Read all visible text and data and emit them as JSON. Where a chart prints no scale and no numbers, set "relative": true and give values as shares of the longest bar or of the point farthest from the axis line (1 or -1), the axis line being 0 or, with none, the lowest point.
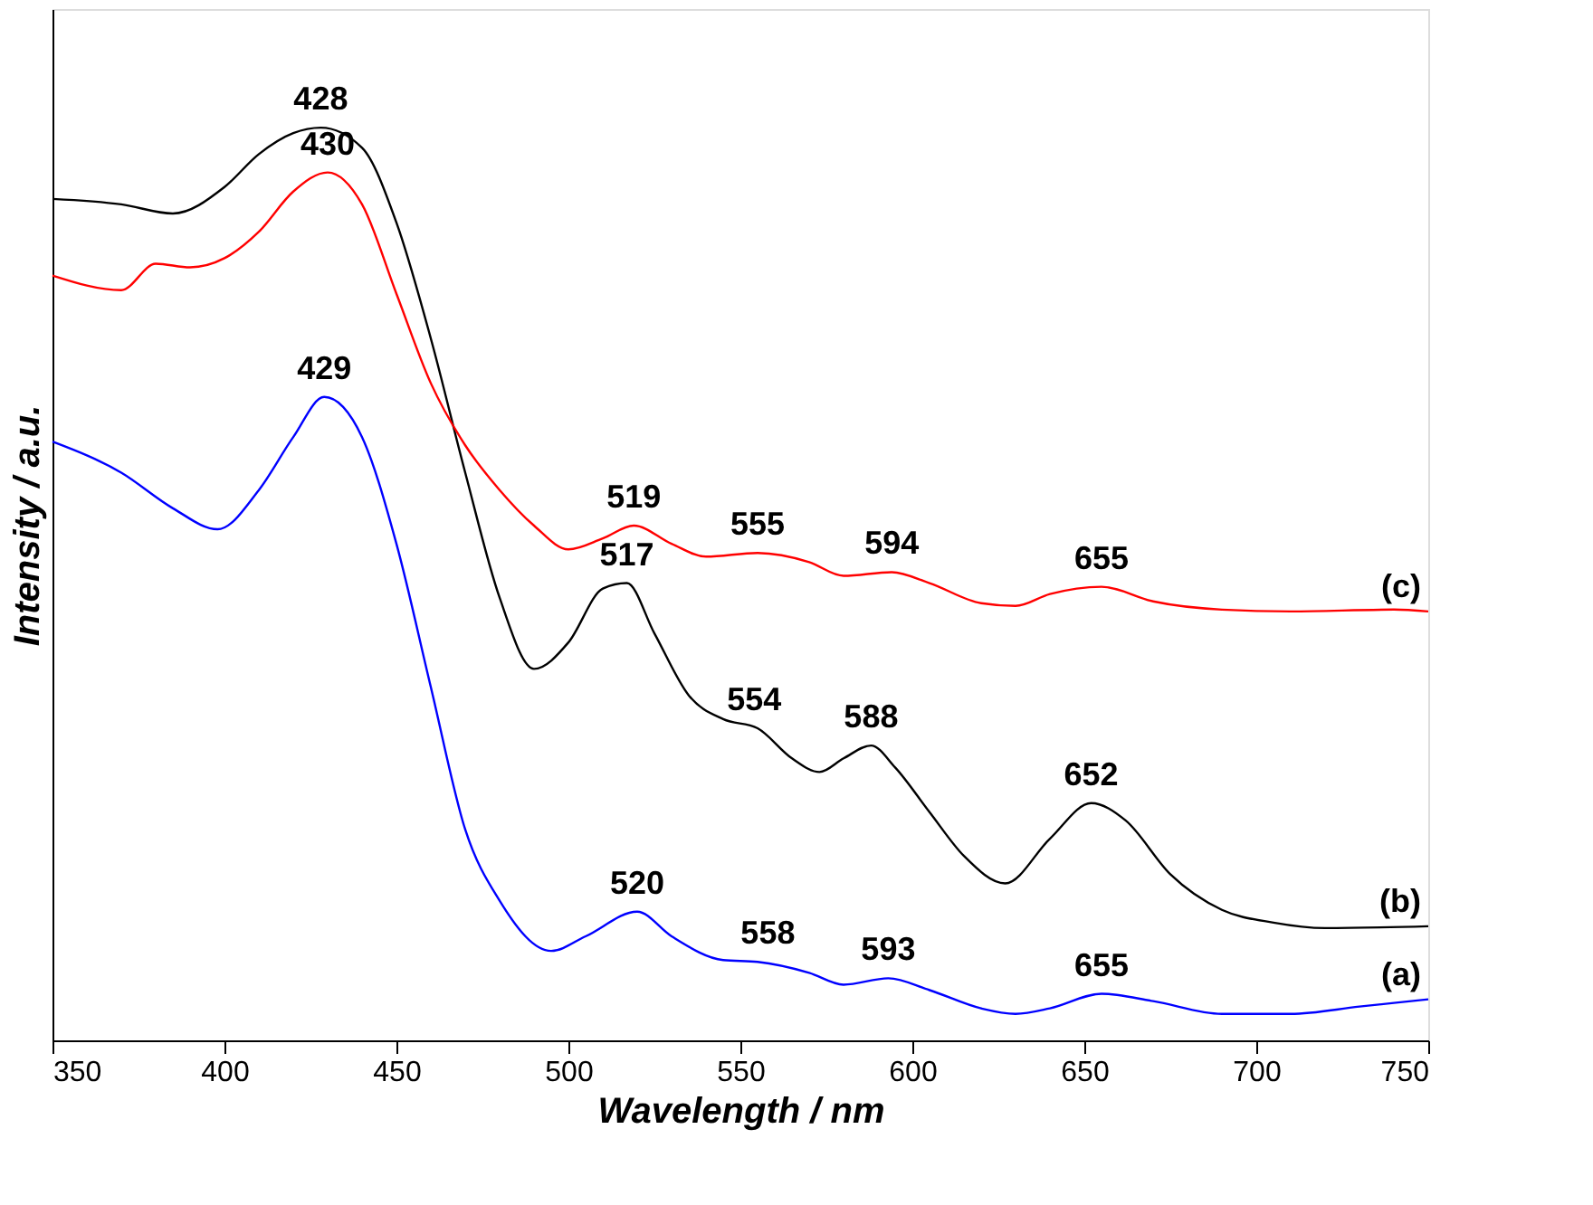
{
  "chart_data": {
    "type": "line",
    "relative": true,
    "xlabel": "Wavelength / nm",
    "ylabel": "Intensity / a.u.",
    "xlim": [
      350,
      750
    ],
    "xticks": [
      350,
      400,
      450,
      500,
      550,
      600,
      650,
      700,
      750
    ],
    "grid": false,
    "marker": "none",
    "line_style": "solid",
    "series": [
      {
        "name": "(a)",
        "color": "#0000ff",
        "x": [
          350,
          370,
          385,
          398,
          410,
          420,
          429,
          440,
          450,
          460,
          470,
          480,
          495,
          505,
          520,
          530,
          545,
          555,
          570,
          580,
          593,
          605,
          620,
          630,
          640,
          655,
          670,
          690,
          710,
          730,
          750
        ],
        "values": [
          0.656,
          0.622,
          0.583,
          0.56,
          0.603,
          0.661,
          0.705,
          0.661,
          0.544,
          0.387,
          0.231,
          0.153,
          0.098,
          0.114,
          0.141,
          0.114,
          0.088,
          0.086,
          0.074,
          0.061,
          0.068,
          0.055,
          0.035,
          0.029,
          0.035,
          0.051,
          0.043,
          0.029,
          0.029,
          0.037,
          0.045
        ]
      },
      {
        "name": "(b)",
        "color": "#000000",
        "x": [
          350,
          370,
          385,
          400,
          410,
          420,
          428,
          440,
          450,
          460,
          470,
          480,
          490,
          500,
          510,
          517,
          525,
          535,
          545,
          555,
          565,
          573,
          580,
          588,
          595,
          605,
          615,
          627,
          640,
          652,
          662,
          675,
          690,
          705,
          720,
          750
        ],
        "values": [
          0.922,
          0.916,
          0.906,
          0.935,
          0.971,
          0.994,
          1,
          0.978,
          0.896,
          0.769,
          0.622,
          0.485,
          0.407,
          0.436,
          0.495,
          0.501,
          0.446,
          0.378,
          0.352,
          0.342,
          0.309,
          0.294,
          0.309,
          0.323,
          0.299,
          0.25,
          0.202,
          0.172,
          0.221,
          0.26,
          0.241,
          0.182,
          0.143,
          0.129,
          0.123,
          0.125
        ]
      },
      {
        "name": "(c)",
        "color": "#ff0000",
        "x": [
          350,
          370,
          380,
          390,
          400,
          410,
          420,
          430,
          440,
          450,
          460,
          470,
          480,
          490,
          500,
          510,
          519,
          530,
          540,
          555,
          570,
          580,
          594,
          605,
          620,
          630,
          640,
          655,
          670,
          690,
          710,
          740,
          750
        ],
        "values": [
          0.838,
          0.822,
          0.851,
          0.847,
          0.857,
          0.886,
          0.93,
          0.951,
          0.916,
          0.818,
          0.72,
          0.652,
          0.603,
          0.564,
          0.538,
          0.55,
          0.564,
          0.544,
          0.53,
          0.534,
          0.524,
          0.509,
          0.513,
          0.501,
          0.479,
          0.476,
          0.489,
          0.497,
          0.481,
          0.472,
          0.47,
          0.472,
          0.47
        ]
      }
    ],
    "annotations": [
      {
        "text": "428",
        "x": 428,
        "y": 1
      },
      {
        "text": "517",
        "x": 517,
        "y": 0.501
      },
      {
        "text": "554",
        "x": 554,
        "y": 0.342
      },
      {
        "text": "588",
        "x": 588,
        "y": 0.323
      },
      {
        "text": "652",
        "x": 652,
        "y": 0.26
      },
      {
        "text": "430",
        "x": 430,
        "y": 0.951
      },
      {
        "text": "519",
        "x": 519,
        "y": 0.564
      },
      {
        "text": "555",
        "x": 555,
        "y": 0.534
      },
      {
        "text": "594",
        "x": 594,
        "y": 0.513
      },
      {
        "text": "655",
        "x": 655,
        "y": 0.497
      },
      {
        "text": "429",
        "x": 429,
        "y": 0.705
      },
      {
        "text": "520",
        "x": 520,
        "y": 0.141
      },
      {
        "text": "558",
        "x": 558,
        "y": 0.086
      },
      {
        "text": "593",
        "x": 593,
        "y": 0.068
      },
      {
        "text": "655",
        "x": 655,
        "y": 0.051
      }
    ]
  }
}
